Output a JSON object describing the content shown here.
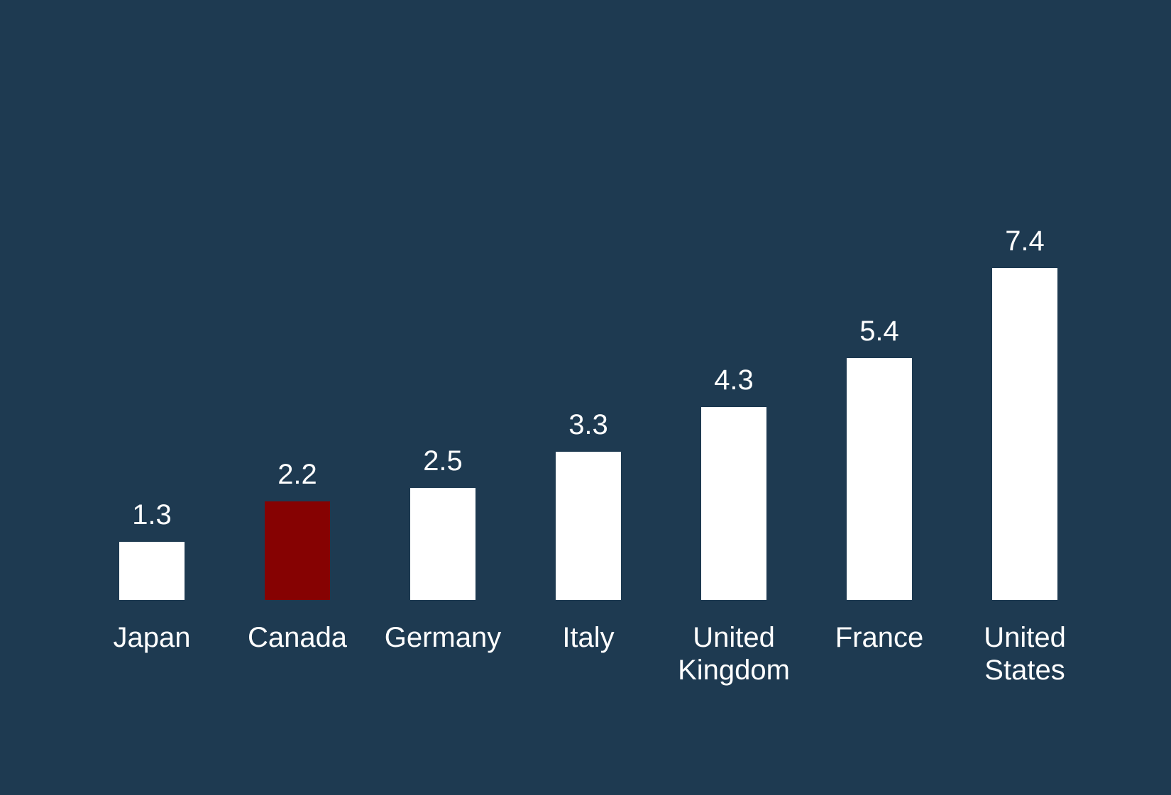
{
  "page": {
    "background_color": "#1e3a51"
  },
  "chart_data": {
    "type": "bar",
    "orientation": "vertical",
    "title": "",
    "xlabel": "",
    "ylabel": "",
    "categories": [
      "Japan",
      "Canada",
      "Germany",
      "Italy",
      "United Kingdom",
      "France",
      "United States"
    ],
    "values": [
      1.3,
      2.2,
      2.5,
      3.3,
      4.3,
      5.4,
      7.4
    ],
    "value_labels": [
      "1.3",
      "2.2",
      "2.5",
      "3.3",
      "4.3",
      "5.4",
      "7.4"
    ],
    "bar_colors": [
      "#ffffff",
      "#860202",
      "#ffffff",
      "#ffffff",
      "#ffffff",
      "#ffffff",
      "#ffffff"
    ],
    "default_bar_color": "#ffffff",
    "highlight": {
      "category": "Canada",
      "color": "#860202"
    },
    "text_color": "#ffffff",
    "background_color": "#1e3a51",
    "ylim": [
      0,
      7.4
    ],
    "grid": false,
    "legend": false,
    "axes_visible": false
  }
}
